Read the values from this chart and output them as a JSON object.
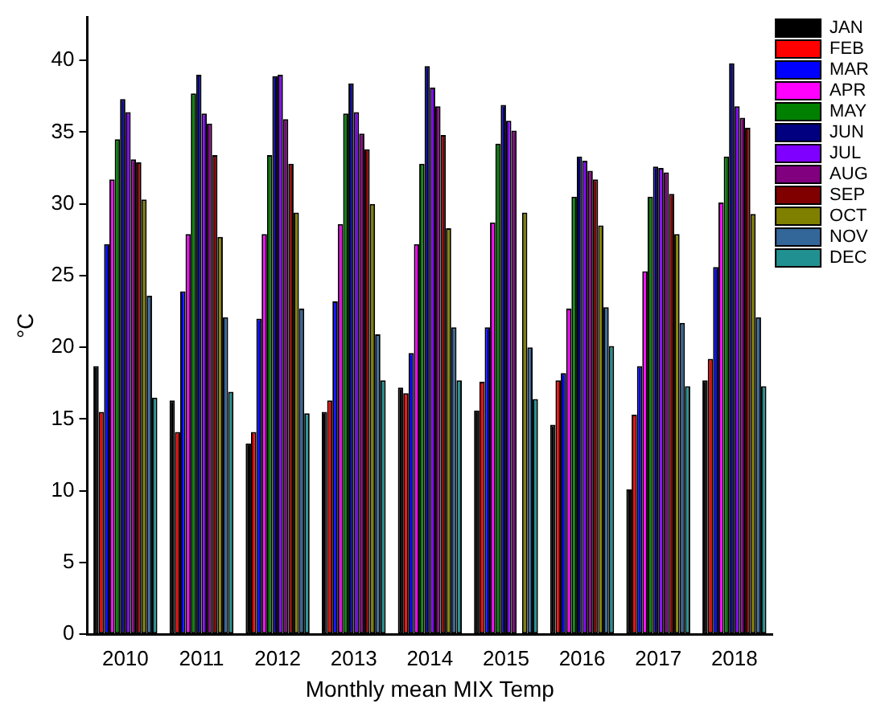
{
  "chart_data": {
    "type": "bar",
    "xlabel": "Monthly mean MIX Temp",
    "ylabel": "°C",
    "categories": [
      "2010",
      "2011",
      "2012",
      "2013",
      "2014",
      "2015",
      "2016",
      "2017",
      "2018"
    ],
    "series": [
      {
        "name": "JAN",
        "color": "#000000",
        "values": [
          18.7,
          16.3,
          13.3,
          15.5,
          17.2,
          15.6,
          14.6,
          10.1,
          17.7
        ]
      },
      {
        "name": "FEB",
        "color": "#ff0000",
        "values": [
          15.5,
          14.1,
          14.1,
          16.3,
          16.8,
          17.6,
          17.7,
          15.3,
          19.2
        ]
      },
      {
        "name": "MAR",
        "color": "#0000ff",
        "values": [
          27.2,
          23.9,
          22.0,
          23.2,
          19.6,
          21.4,
          18.2,
          18.7,
          25.6
        ]
      },
      {
        "name": "APR",
        "color": "#ff00ff",
        "values": [
          31.7,
          27.9,
          27.9,
          28.6,
          27.2,
          28.7,
          22.7,
          25.3,
          30.1
        ]
      },
      {
        "name": "MAY",
        "color": "#008000",
        "values": [
          34.5,
          37.7,
          33.4,
          36.3,
          32.8,
          34.2,
          30.5,
          30.5,
          33.3
        ]
      },
      {
        "name": "JUN",
        "color": "#000080",
        "values": [
          37.3,
          39.0,
          38.9,
          38.4,
          39.6,
          36.9,
          33.3,
          32.6,
          39.8
        ]
      },
      {
        "name": "JUL",
        "color": "#8000ff",
        "values": [
          36.4,
          36.3,
          39.0,
          36.4,
          38.1,
          35.8,
          33.0,
          32.5,
          36.8
        ]
      },
      {
        "name": "AUG",
        "color": "#800080",
        "values": [
          33.1,
          35.6,
          35.9,
          34.9,
          36.8,
          35.1,
          32.3,
          32.2,
          36.0
        ]
      },
      {
        "name": "SEP",
        "color": "#800000",
        "values": [
          32.9,
          33.4,
          32.8,
          33.8,
          34.8,
          null,
          31.7,
          30.7,
          35.3
        ]
      },
      {
        "name": "OCT",
        "color": "#808000",
        "values": [
          30.3,
          27.7,
          29.4,
          30.0,
          28.3,
          29.4,
          28.5,
          27.9,
          29.3
        ]
      },
      {
        "name": "NOV",
        "color": "#336699",
        "values": [
          23.6,
          22.1,
          22.7,
          20.9,
          21.4,
          20.0,
          22.8,
          21.7,
          22.1
        ]
      },
      {
        "name": "DEC",
        "color": "#209090",
        "values": [
          16.5,
          16.9,
          15.4,
          17.7,
          17.7,
          16.4,
          20.1,
          17.3,
          17.3
        ]
      }
    ],
    "ylim": [
      0,
      43
    ],
    "yticks": [
      0,
      5,
      10,
      15,
      20,
      25,
      30,
      35,
      40
    ],
    "grid": false,
    "legend": "top right"
  }
}
